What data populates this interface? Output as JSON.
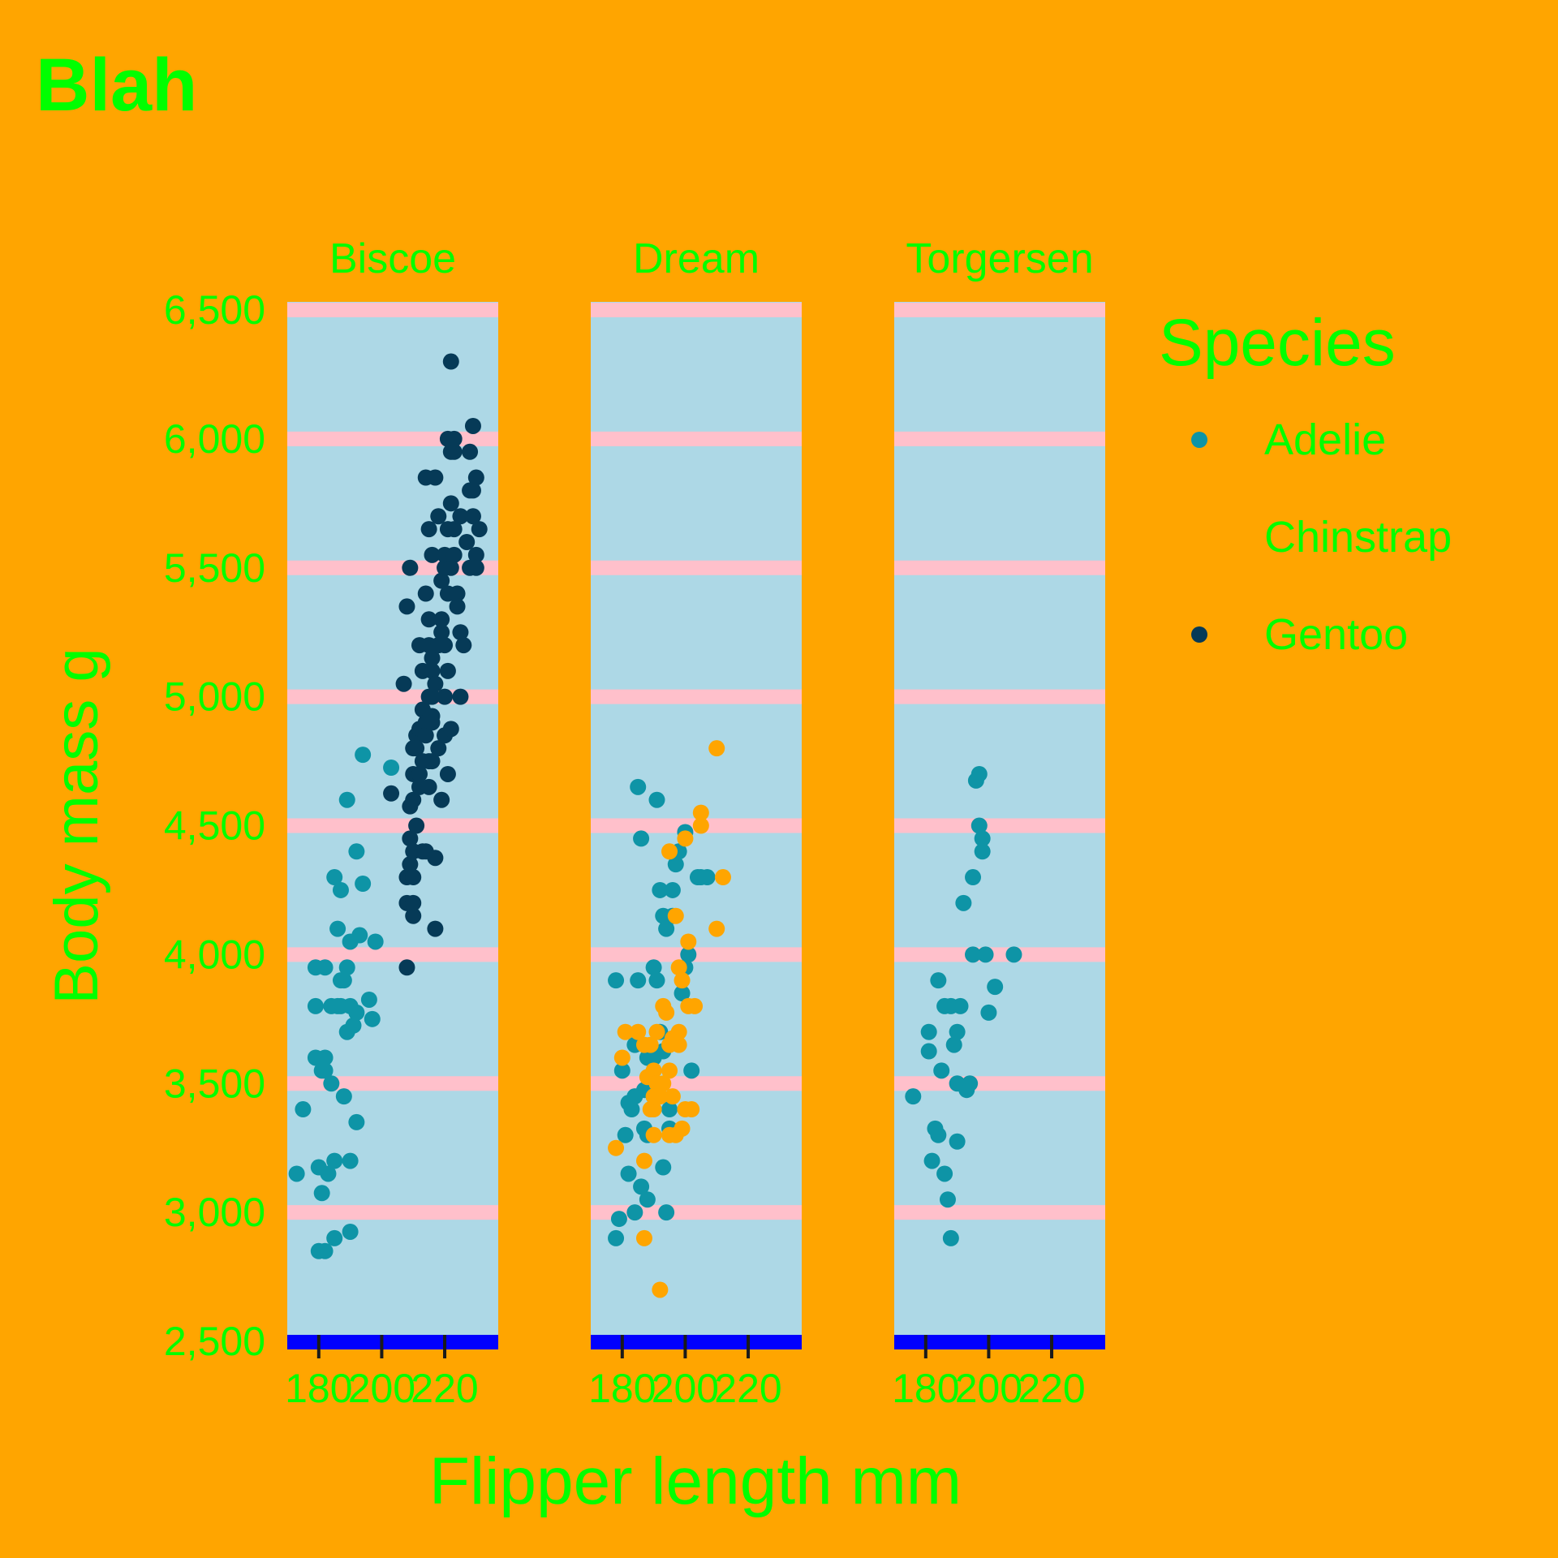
{
  "colors": {
    "page_background": "#FFA500",
    "panel_background": "#ADD8E6",
    "gridline": "#FFC0CB",
    "axis_line": "#0000FF",
    "text": "#00FF00",
    "tick": "#1A1A1A"
  },
  "chart_data": {
    "type": "scatter",
    "title": "Blah",
    "xlabel": "Flipper length mm",
    "ylabel": "Body mass g",
    "facets": [
      "Biscoe",
      "Dream",
      "Torgersen"
    ],
    "xlim": [
      170,
      237
    ],
    "ylim": [
      2500,
      6500
    ],
    "x_ticks": [
      180,
      200,
      220
    ],
    "x_tick_labels": [
      "180",
      "200",
      "220"
    ],
    "y_ticks": [
      2500,
      3000,
      3500,
      4000,
      4500,
      5000,
      5500,
      6000,
      6500
    ],
    "y_tick_labels": [
      "2,500",
      "3,000",
      "3,500",
      "4,000",
      "4,500",
      "5,000",
      "5,500",
      "6,000",
      "6,500"
    ],
    "legend": {
      "title": "Species",
      "position": "right",
      "entries": [
        {
          "name": "Adelie",
          "color": "#0E94A6",
          "show_marker": true
        },
        {
          "name": "Chinstrap",
          "color": "#FFA500",
          "show_marker": false
        },
        {
          "name": "Gentoo",
          "color": "#063A57",
          "show_marker": true
        }
      ]
    },
    "series": [
      {
        "facet": "Biscoe",
        "species": "Adelie",
        "color": "#0E94A6",
        "points": [
          [
            173,
            3150
          ],
          [
            175,
            3400
          ],
          [
            179,
            3950
          ],
          [
            179,
            3800
          ],
          [
            179,
            3600
          ],
          [
            180,
            3175
          ],
          [
            180,
            2850
          ],
          [
            181,
            3550
          ],
          [
            181,
            3075
          ],
          [
            182,
            3600
          ],
          [
            182,
            3550
          ],
          [
            182,
            2850
          ],
          [
            182,
            3950
          ],
          [
            183,
            3150
          ],
          [
            184,
            3500
          ],
          [
            184,
            3800
          ],
          [
            185,
            2900
          ],
          [
            185,
            3200
          ],
          [
            185,
            4300
          ],
          [
            186,
            4100
          ],
          [
            186,
            3800
          ],
          [
            187,
            3800
          ],
          [
            187,
            3900
          ],
          [
            187,
            4250
          ],
          [
            188,
            3450
          ],
          [
            188,
            3900
          ],
          [
            189,
            3700
          ],
          [
            189,
            4600
          ],
          [
            189,
            3950
          ],
          [
            190,
            4050
          ],
          [
            190,
            3200
          ],
          [
            190,
            2925
          ],
          [
            190,
            3800
          ],
          [
            191,
            3725
          ],
          [
            192,
            3350
          ],
          [
            192,
            3775
          ],
          [
            192,
            4400
          ],
          [
            193,
            4075
          ],
          [
            194,
            4275
          ],
          [
            194,
            4775
          ],
          [
            196,
            3825
          ],
          [
            197,
            3750
          ],
          [
            198,
            4050
          ],
          [
            203,
            4725
          ]
        ]
      },
      {
        "facet": "Biscoe",
        "species": "Gentoo",
        "color": "#063A57",
        "points": [
          [
            203,
            4625
          ],
          [
            207,
            5050
          ],
          [
            208,
            4200
          ],
          [
            208,
            3950
          ],
          [
            208,
            5350
          ],
          [
            208,
            4300
          ],
          [
            209,
            5500
          ],
          [
            209,
            4450
          ],
          [
            209,
            4350
          ],
          [
            209,
            4575
          ],
          [
            210,
            4400
          ],
          [
            210,
            4800
          ],
          [
            210,
            4600
          ],
          [
            210,
            4150
          ],
          [
            210,
            4200
          ],
          [
            210,
            4700
          ],
          [
            210,
            4300
          ],
          [
            211,
            4850
          ],
          [
            211,
            4500
          ],
          [
            211,
            4800
          ],
          [
            212,
            4875
          ],
          [
            212,
            5200
          ],
          [
            212,
            4700
          ],
          [
            212,
            4650
          ],
          [
            213,
            4400
          ],
          [
            213,
            4750
          ],
          [
            213,
            4950
          ],
          [
            213,
            5100
          ],
          [
            214,
            5850
          ],
          [
            214,
            4900
          ],
          [
            214,
            4850
          ],
          [
            214,
            4400
          ],
          [
            214,
            5400
          ],
          [
            215,
            5000
          ],
          [
            215,
            4750
          ],
          [
            215,
            4650
          ],
          [
            215,
            5650
          ],
          [
            215,
            5200
          ],
          [
            215,
            5300
          ],
          [
            216,
            4925
          ],
          [
            216,
            5150
          ],
          [
            216,
            5000
          ],
          [
            216,
            4750
          ],
          [
            216,
            5550
          ],
          [
            216,
            5100
          ],
          [
            216,
            4900
          ],
          [
            217,
            4375
          ],
          [
            217,
            4100
          ],
          [
            217,
            5050
          ],
          [
            217,
            5850
          ],
          [
            218,
            4800
          ],
          [
            218,
            5700
          ],
          [
            218,
            5200
          ],
          [
            219,
            4600
          ],
          [
            219,
            5250
          ],
          [
            219,
            5300
          ],
          [
            219,
            5450
          ],
          [
            220,
            5000
          ],
          [
            220,
            4850
          ],
          [
            220,
            5500
          ],
          [
            220,
            5550
          ],
          [
            220,
            5200
          ],
          [
            221,
            6000
          ],
          [
            221,
            4700
          ],
          [
            221,
            5650
          ],
          [
            221,
            5400
          ],
          [
            221,
            5100
          ],
          [
            222,
            6300
          ],
          [
            222,
            5950
          ],
          [
            222,
            5750
          ],
          [
            222,
            5500
          ],
          [
            222,
            4875
          ],
          [
            223,
            5950
          ],
          [
            223,
            6000
          ],
          [
            223,
            5550
          ],
          [
            223,
            5650
          ],
          [
            224,
            5400
          ],
          [
            224,
            5350
          ],
          [
            225,
            5700
          ],
          [
            225,
            5250
          ],
          [
            225,
            5000
          ],
          [
            226,
            5200
          ],
          [
            227,
            5600
          ],
          [
            228,
            5500
          ],
          [
            228,
            5800
          ],
          [
            228,
            5950
          ],
          [
            229,
            6050
          ],
          [
            229,
            5700
          ],
          [
            229,
            5800
          ],
          [
            230,
            5850
          ],
          [
            230,
            5550
          ],
          [
            230,
            5500
          ],
          [
            231,
            5650
          ]
        ]
      },
      {
        "facet": "Dream",
        "species": "Adelie",
        "color": "#0E94A6",
        "points": [
          [
            178,
            3900
          ],
          [
            178,
            2900
          ],
          [
            179,
            2975
          ],
          [
            180,
            3550
          ],
          [
            181,
            3300
          ],
          [
            182,
            3150
          ],
          [
            182,
            3425
          ],
          [
            183,
            3400
          ],
          [
            184,
            3450
          ],
          [
            184,
            3650
          ],
          [
            184,
            3000
          ],
          [
            185,
            4650
          ],
          [
            185,
            3900
          ],
          [
            186,
            4450
          ],
          [
            186,
            3100
          ],
          [
            187,
            3325
          ],
          [
            187,
            3475
          ],
          [
            188,
            3300
          ],
          [
            188,
            3050
          ],
          [
            188,
            3600
          ],
          [
            189,
            3500
          ],
          [
            190,
            3600
          ],
          [
            190,
            3950
          ],
          [
            190,
            3450
          ],
          [
            191,
            4600
          ],
          [
            191,
            3900
          ],
          [
            192,
            4250
          ],
          [
            192,
            3700
          ],
          [
            193,
            3175
          ],
          [
            193,
            4150
          ],
          [
            193,
            3625
          ],
          [
            194,
            4100
          ],
          [
            194,
            3000
          ],
          [
            195,
            3325
          ],
          [
            195,
            3400
          ],
          [
            196,
            4150
          ],
          [
            196,
            4250
          ],
          [
            197,
            4350
          ],
          [
            198,
            4400
          ],
          [
            199,
            3850
          ],
          [
            200,
            3950
          ],
          [
            200,
            4475
          ],
          [
            201,
            4000
          ],
          [
            202,
            3550
          ],
          [
            204,
            4300
          ],
          [
            205,
            4300
          ],
          [
            207,
            4300
          ]
        ]
      },
      {
        "facet": "Dream",
        "species": "Chinstrap",
        "color": "#FFA500",
        "points": [
          [
            178,
            3250
          ],
          [
            180,
            3600
          ],
          [
            181,
            3700
          ],
          [
            185,
            3700
          ],
          [
            187,
            3650
          ],
          [
            187,
            2900
          ],
          [
            187,
            3200
          ],
          [
            188,
            3525
          ],
          [
            189,
            3650
          ],
          [
            189,
            3400
          ],
          [
            190,
            3400
          ],
          [
            190,
            3300
          ],
          [
            190,
            3450
          ],
          [
            190,
            3550
          ],
          [
            191,
            3700
          ],
          [
            191,
            3500
          ],
          [
            192,
            2700
          ],
          [
            192,
            3450
          ],
          [
            193,
            3500
          ],
          [
            193,
            3800
          ],
          [
            194,
            3775
          ],
          [
            195,
            3650
          ],
          [
            195,
            4400
          ],
          [
            195,
            3550
          ],
          [
            195,
            3300
          ],
          [
            196,
            3675
          ],
          [
            196,
            3450
          ],
          [
            197,
            4150
          ],
          [
            197,
            3300
          ],
          [
            198,
            3950
          ],
          [
            198,
            3700
          ],
          [
            198,
            3650
          ],
          [
            199,
            3325
          ],
          [
            199,
            3900
          ],
          [
            200,
            3400
          ],
          [
            200,
            4450
          ],
          [
            201,
            4050
          ],
          [
            201,
            3800
          ],
          [
            202,
            3400
          ],
          [
            203,
            3800
          ],
          [
            205,
            4500
          ],
          [
            205,
            4550
          ],
          [
            210,
            4800
          ],
          [
            210,
            4100
          ],
          [
            212,
            4300
          ]
        ]
      },
      {
        "facet": "Torgersen",
        "species": "Adelie",
        "color": "#0E94A6",
        "points": [
          [
            176,
            3450
          ],
          [
            181,
            3700
          ],
          [
            181,
            3625
          ],
          [
            182,
            3200
          ],
          [
            183,
            3325
          ],
          [
            184,
            3900
          ],
          [
            184,
            3300
          ],
          [
            185,
            3550
          ],
          [
            186,
            3150
          ],
          [
            186,
            3800
          ],
          [
            187,
            3050
          ],
          [
            188,
            3800
          ],
          [
            188,
            2900
          ],
          [
            189,
            3650
          ],
          [
            190,
            3700
          ],
          [
            190,
            3500
          ],
          [
            190,
            3275
          ],
          [
            191,
            3800
          ],
          [
            192,
            4200
          ],
          [
            193,
            3475
          ],
          [
            194,
            3500
          ],
          [
            195,
            4000
          ],
          [
            195,
            4300
          ],
          [
            196,
            4675
          ],
          [
            197,
            4700
          ],
          [
            197,
            4500
          ],
          [
            198,
            4450
          ],
          [
            198,
            4400
          ],
          [
            199,
            4000
          ],
          [
            200,
            3775
          ],
          [
            202,
            3875
          ],
          [
            208,
            4000
          ]
        ]
      }
    ]
  }
}
